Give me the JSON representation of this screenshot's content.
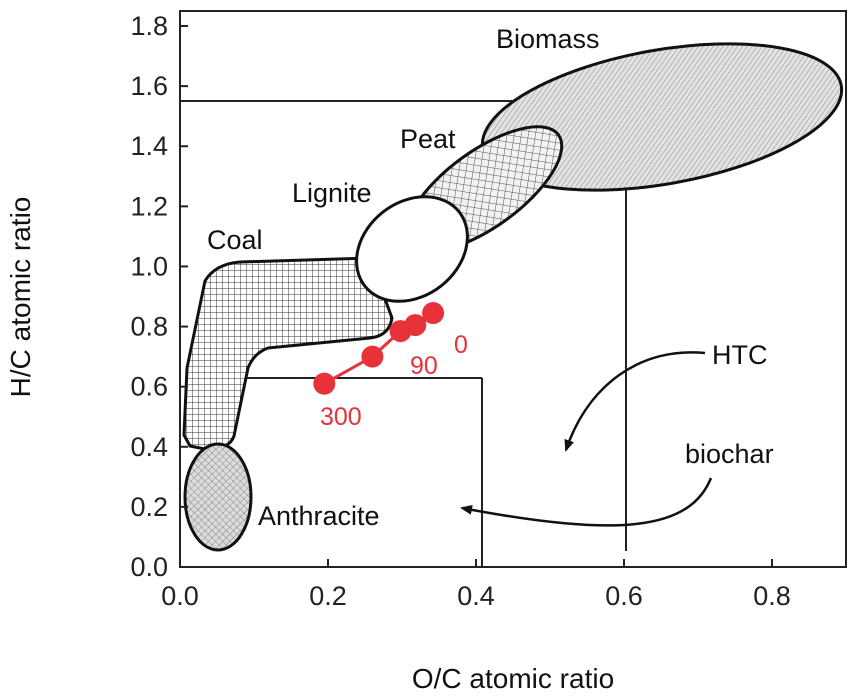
{
  "chart_data": {
    "type": "scatter",
    "title": "",
    "xlabel": "O/C atomic ratio",
    "ylabel": "H/C atomic ratio",
    "xlim": [
      0.0,
      0.9
    ],
    "ylim": [
      0.0,
      1.85
    ],
    "x_ticks": [
      "0.0",
      "0.2",
      "0.4",
      "0.6",
      "0.8"
    ],
    "y_ticks": [
      "0.0",
      "0.2",
      "0.4",
      "0.6",
      "0.8",
      "1.0",
      "1.2",
      "1.4",
      "1.6",
      "1.8"
    ],
    "grid": false,
    "regions": [
      {
        "name": "Biomass",
        "pattern": "diagonal-hatch"
      },
      {
        "name": "Peat",
        "pattern": "cross-hatch"
      },
      {
        "name": "Lignite",
        "pattern": "none"
      },
      {
        "name": "Coal",
        "pattern": "grid"
      },
      {
        "name": "Anthracite",
        "pattern": "cross-hatch"
      }
    ],
    "series": [
      {
        "color": "#e8323a",
        "x": [
          0.195,
          0.26,
          0.298,
          0.318,
          0.342
        ],
        "y": [
          0.61,
          0.7,
          0.785,
          0.805,
          0.845
        ]
      }
    ],
    "point_labels": [
      "300",
      "90",
      "0"
    ],
    "annotations": [
      "HTC",
      "biochar"
    ],
    "reference_boxes": [
      {
        "label": "HTC",
        "x_max": 0.6,
        "y_max": 1.53
      },
      {
        "label": "biochar",
        "x_max": 0.41,
        "y_max": 0.62
      }
    ]
  }
}
